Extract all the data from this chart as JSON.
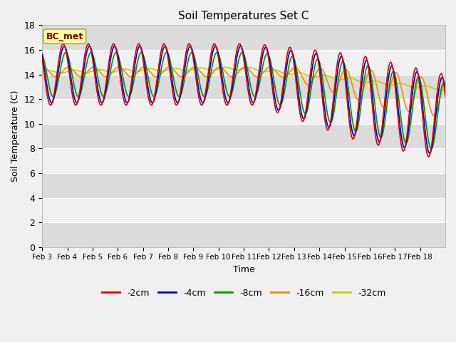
{
  "title": "Soil Temperatures Set C",
  "xlabel": "Time",
  "ylabel": "Soil Temperature (C)",
  "annotation": "BC_met",
  "annotation_color": "#8B0000",
  "annotation_bg": "#FFFFA0",
  "ylim": [
    0,
    18
  ],
  "series_colors": {
    "-2cm": "#DD0000",
    "-4cm": "#0000CC",
    "-8cm": "#009900",
    "-16cm": "#FF8800",
    "-32cm": "#CCCC00"
  },
  "xtick_labels": [
    "Feb 3",
    "Feb 4",
    "Feb 5",
    "Feb 6",
    "Feb 7",
    "Feb 8",
    "Feb 9",
    "Feb 10",
    "Feb 11",
    "Feb 12",
    "Feb 13",
    "Feb 14",
    "Feb 15",
    "Feb 16",
    "Feb 17",
    "Feb 18"
  ],
  "plot_bg_dark": "#DCDCDC",
  "plot_bg_light": "#F0F0F0",
  "grid_color": "#FFFFFF",
  "linewidth": 1.2,
  "figsize": [
    6.4,
    4.8
  ],
  "dpi": 100
}
